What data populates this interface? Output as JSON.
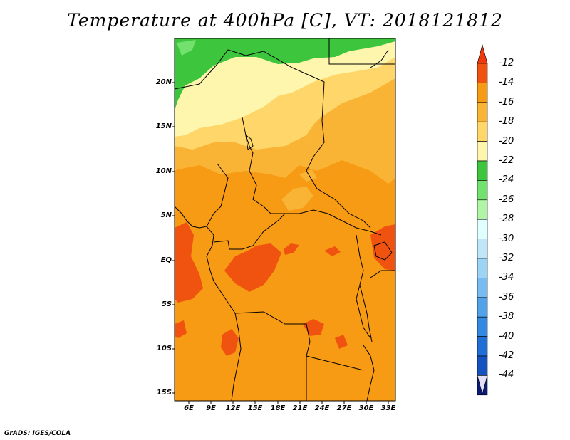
{
  "title": "Temperature at 400hPa [C], VT: 2018121812",
  "credit": "GrADS: IGES/COLA",
  "lat_labels": [
    "20N",
    "15N",
    "10N",
    "5N",
    "EQ",
    "5S",
    "10S",
    "15S"
  ],
  "lon_labels": [
    "6E",
    "9E",
    "12E",
    "15E",
    "18E",
    "21E",
    "24E",
    "27E",
    "30E",
    "33E"
  ],
  "colorbar": {
    "labels": [
      "-12",
      "-14",
      "-16",
      "-18",
      "-20",
      "-22",
      "-24",
      "-26",
      "-28",
      "-30",
      "-32",
      "-34",
      "-36",
      "-38",
      "-40",
      "-42",
      "-44"
    ],
    "colors": [
      "#f0520f",
      "#f79a14",
      "#f9b435",
      "#fed66a",
      "#fff6ad",
      "#3ec53e",
      "#72e16e",
      "#b0f4a6",
      "#e0ffff",
      "#bfe6f8",
      "#9dd3f5",
      "#78bbf0",
      "#51a2e9",
      "#3388e1",
      "#1f6fd6",
      "#1452bf",
      "#0a1c7a"
    ],
    "top_arrow_color": "#ef3a0e",
    "bottom_arrow_color": "#e3dff8"
  },
  "colors": {
    "warm_region": "#f79a14",
    "warmest_patches": "#f0520f",
    "mid_band": "#f9b435",
    "cool_band": "#fed66a",
    "cooler_band": "#fff6ad",
    "coldest_north": "#3ec53e"
  }
}
